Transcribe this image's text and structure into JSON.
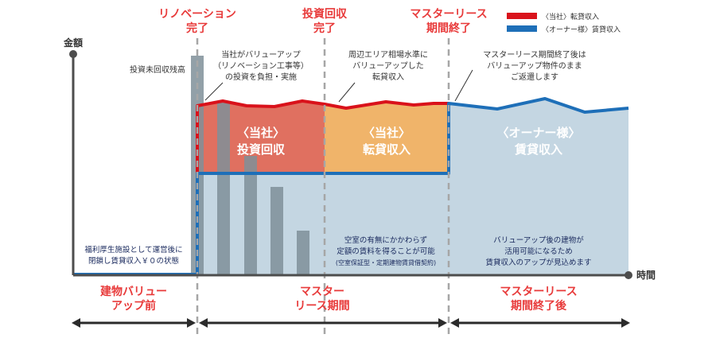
{
  "milestones": {
    "renovation": [
      "リノベーション",
      "完了"
    ],
    "recovery": [
      "投資回収",
      "完了"
    ],
    "lease_end": [
      "マスターリース",
      "期間終了"
    ]
  },
  "legend": {
    "company": "〈当社〉転貸収入",
    "owner": "〈オーナー様〉賃貸収入"
  },
  "axis": {
    "y_label": "金額",
    "x_label": "時間"
  },
  "annotations": {
    "unrecovered": "投資未回収残高",
    "company_invest": [
      "当社がバリューアップ",
      "（リノベーション工事等）",
      "の投資を負担・実施"
    ],
    "sublease_level": [
      "周辺エリア相場水準に",
      "バリューアップした",
      "転貸収入"
    ],
    "return_property": [
      "マスターリース期間終了後は",
      "バリューアップ物件のまま",
      "ご返還します"
    ],
    "before_state": [
      "福利厚生施設として運営後に",
      "閉鎖し賃貸収入￥０の状態"
    ],
    "fixed_rent": [
      "空室の有無にかかわらず",
      "定額の賃料を得ることが可能",
      "(空室保証型・定期建物賃貸借契約)"
    ],
    "after_building": [
      "バリューアップ後の建物が",
      "活用可能になるため",
      "賃貸収入のアップが見込めます"
    ]
  },
  "areas": {
    "invest_recovery": [
      "〈当社〉",
      "投資回収"
    ],
    "sublease": [
      "〈当社〉",
      "転貸収入"
    ],
    "owner_rent": [
      "〈オーナー様〉",
      "賃貸収入"
    ]
  },
  "phases": {
    "before": [
      "建物バリュー",
      "アップ前"
    ],
    "master": [
      "マスター",
      "リース期間"
    ],
    "after": [
      "マスターリース",
      "期間終了後"
    ]
  },
  "colors": {
    "accent_red": "#e83a3a",
    "line_red": "#d9121b",
    "line_blue": "#1e6fb8",
    "area_red": "#e07060",
    "area_orange": "#f0b46a",
    "area_blue": "#c4d6e2",
    "bar_gray": "#7f8f99",
    "axis_gray": "#4d4d4d",
    "dash_gray": "#a6a6a6"
  }
}
